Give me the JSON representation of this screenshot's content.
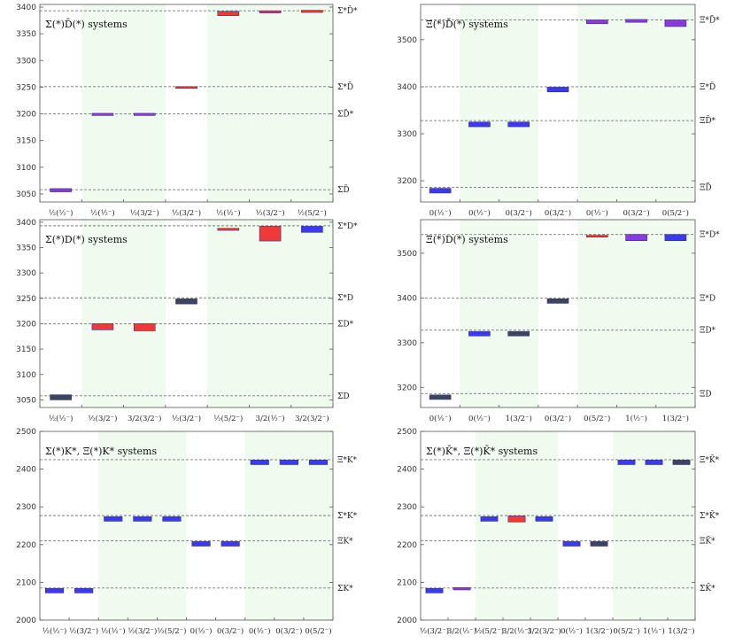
{
  "colors": {
    "blue": "#3a3af0",
    "red": "#f03a3a",
    "purple": "#8a3ae0",
    "navy": "#3a4560",
    "shade": "#eefbee"
  },
  "chart_data": [
    {
      "type": "bar",
      "title": "Σ(*)D̄(*) systems",
      "ylim": [
        3035,
        3405
      ],
      "yticks": [
        3050,
        3100,
        3150,
        3200,
        3250,
        3300,
        3350,
        3400
      ],
      "categories": [
        "½(½⁻)",
        "½(½⁻)",
        "½(3/2⁻)",
        "½(3/2⁻)",
        "½(½⁻)",
        "½(3/2⁻)",
        "½(5/2⁻)"
      ],
      "shaded": [
        [
          1,
          2
        ],
        [
          4,
          6
        ]
      ],
      "thresholds": [
        {
          "label": "Σ*D̄*",
          "value": 3393
        },
        {
          "label": "Σ*D̄",
          "value": 3251
        },
        {
          "label": "ΣD̄*",
          "value": 3200
        },
        {
          "label": "ΣD̄",
          "value": 3058
        }
      ],
      "bars": [
        {
          "value": 3057,
          "low": 3054,
          "high": 3060,
          "color": "purple"
        },
        {
          "value": 3199,
          "low": 3197,
          "high": 3201,
          "color": "purple"
        },
        {
          "value": 3199,
          "low": 3197,
          "high": 3201,
          "color": "purple"
        },
        {
          "value": 3250,
          "low": 3249,
          "high": 3251,
          "color": "red"
        },
        {
          "value": 3388,
          "low": 3384,
          "high": 3392,
          "color": "red"
        },
        {
          "value": 3391,
          "low": 3389,
          "high": 3393,
          "color": "red"
        },
        {
          "value": 3392,
          "low": 3390,
          "high": 3394,
          "color": "red"
        }
      ]
    },
    {
      "type": "bar",
      "title": "Ξ(*)D̄(*) systems",
      "ylim": [
        3155,
        3575
      ],
      "yticks": [
        3200,
        3300,
        3400,
        3500
      ],
      "categories": [
        "0(½⁻)",
        "0(½⁻)",
        "0(3/2⁻)",
        "0(3/2⁻)",
        "0(½⁻)",
        "0(3/2⁻)",
        "0(5/2⁻)"
      ],
      "shaded": [
        [
          1,
          2
        ],
        [
          4,
          6
        ]
      ],
      "thresholds": [
        {
          "label": "Ξ*D̄*",
          "value": 3542
        },
        {
          "label": "Ξ*D̄",
          "value": 3400
        },
        {
          "label": "ΞD̄*",
          "value": 3328
        },
        {
          "label": "ΞD̄",
          "value": 3186
        }
      ],
      "bars": [
        {
          "value": 3179,
          "low": 3174,
          "high": 3184,
          "color": "blue"
        },
        {
          "value": 3320,
          "low": 3315,
          "high": 3325,
          "color": "blue"
        },
        {
          "value": 3320,
          "low": 3315,
          "high": 3325,
          "color": "blue"
        },
        {
          "value": 3394,
          "low": 3389,
          "high": 3399,
          "color": "blue"
        },
        {
          "value": 3538,
          "low": 3534,
          "high": 3542,
          "color": "purple"
        },
        {
          "value": 3540,
          "low": 3537,
          "high": 3543,
          "color": "purple"
        },
        {
          "value": 3535,
          "low": 3528,
          "high": 3542,
          "color": "purple"
        }
      ]
    },
    {
      "type": "bar",
      "title": "Σ(*)D(*) systems",
      "ylim": [
        3035,
        3405
      ],
      "yticks": [
        3050,
        3100,
        3150,
        3200,
        3250,
        3300,
        3350,
        3400
      ],
      "categories": [
        "½(½⁻)",
        "½(3/2⁻)",
        "3/2(3/2⁻)",
        "½(3/2⁻)",
        "½(5/2⁻)",
        "3/2(½⁻)",
        "3/2(3/2⁻)"
      ],
      "shaded": [
        [
          1,
          2
        ],
        [
          4,
          6
        ]
      ],
      "thresholds": [
        {
          "label": "Σ*D*",
          "value": 3393
        },
        {
          "label": "Σ*D",
          "value": 3251
        },
        {
          "label": "ΣD*",
          "value": 3200
        },
        {
          "label": "ΣD",
          "value": 3058
        }
      ],
      "bars": [
        {
          "value": 3055,
          "low": 3050,
          "high": 3060,
          "color": "navy"
        },
        {
          "value": 3194,
          "low": 3188,
          "high": 3200,
          "color": "red"
        },
        {
          "value": 3193,
          "low": 3186,
          "high": 3200,
          "color": "red"
        },
        {
          "value": 3244,
          "low": 3239,
          "high": 3249,
          "color": "navy"
        },
        {
          "value": 3386,
          "low": 3384,
          "high": 3388,
          "color": "red"
        },
        {
          "value": 3378,
          "low": 3363,
          "high": 3392,
          "color": "red"
        },
        {
          "value": 3386,
          "low": 3380,
          "high": 3392,
          "color": "blue"
        }
      ]
    },
    {
      "type": "bar",
      "title": "Ξ(*)D(*) systems",
      "ylim": [
        3155,
        3575
      ],
      "yticks": [
        3200,
        3300,
        3400,
        3500
      ],
      "categories": [
        "0(½⁻)",
        "0(½⁻)",
        "1(3/2⁻)",
        "0(3/2⁻)",
        "0(5/2⁻)",
        "1(½⁻)",
        "1(3/2⁻)"
      ],
      "shaded": [
        [
          1,
          2
        ],
        [
          4,
          6
        ]
      ],
      "thresholds": [
        {
          "label": "Ξ*D*",
          "value": 3542
        },
        {
          "label": "Ξ*D",
          "value": 3400
        },
        {
          "label": "ΞD*",
          "value": 3328
        },
        {
          "label": "ΞD",
          "value": 3186
        }
      ],
      "bars": [
        {
          "value": 3178,
          "low": 3173,
          "high": 3183,
          "color": "navy"
        },
        {
          "value": 3320,
          "low": 3315,
          "high": 3325,
          "color": "blue"
        },
        {
          "value": 3320,
          "low": 3315,
          "high": 3325,
          "color": "navy"
        },
        {
          "value": 3393,
          "low": 3388,
          "high": 3398,
          "color": "navy"
        },
        {
          "value": 3538,
          "low": 3536,
          "high": 3540,
          "color": "red"
        },
        {
          "value": 3535,
          "low": 3528,
          "high": 3542,
          "color": "purple"
        },
        {
          "value": 3535,
          "low": 3528,
          "high": 3542,
          "color": "blue"
        }
      ]
    },
    {
      "type": "bar",
      "title": "Σ(*)K*, Ξ(*)K* systems",
      "ylim": [
        2000,
        2500
      ],
      "yticks": [
        2000,
        2100,
        2200,
        2300,
        2400,
        2500
      ],
      "categories": [
        "½(½⁻)",
        "½(3/2⁻)",
        "½(½⁻)",
        "½(3/2⁻)",
        "½(5/2⁻)",
        "0(½⁻)",
        "0(3/2⁻)",
        "0(½⁻)",
        "0(3/2⁻)",
        "0(5/2⁻)"
      ],
      "shaded": [
        [
          2,
          4
        ],
        [
          7,
          9
        ]
      ],
      "thresholds": [
        {
          "label": "Ξ*K*",
          "value": 2425
        },
        {
          "label": "Σ*K*",
          "value": 2277
        },
        {
          "label": "ΞK*",
          "value": 2210
        },
        {
          "label": "ΣK*",
          "value": 2085
        }
      ],
      "bars": [
        {
          "value": 2078,
          "low": 2072,
          "high": 2084,
          "color": "blue"
        },
        {
          "value": 2078,
          "low": 2072,
          "high": 2084,
          "color": "blue"
        },
        {
          "value": 2268,
          "low": 2262,
          "high": 2274,
          "color": "blue"
        },
        {
          "value": 2268,
          "low": 2262,
          "high": 2274,
          "color": "blue"
        },
        {
          "value": 2268,
          "low": 2262,
          "high": 2274,
          "color": "blue"
        },
        {
          "value": 2202,
          "low": 2196,
          "high": 2208,
          "color": "blue"
        },
        {
          "value": 2202,
          "low": 2196,
          "high": 2208,
          "color": "blue"
        },
        {
          "value": 2418,
          "low": 2412,
          "high": 2424,
          "color": "blue"
        },
        {
          "value": 2418,
          "low": 2412,
          "high": 2424,
          "color": "blue"
        },
        {
          "value": 2418,
          "low": 2412,
          "high": 2424,
          "color": "blue"
        }
      ]
    },
    {
      "type": "bar",
      "title": "Σ(*)K̄*, Ξ(*)K̄* systems",
      "ylim": [
        2000,
        2500
      ],
      "yticks": [
        2000,
        2100,
        2200,
        2300,
        2400,
        2500
      ],
      "categories": [
        "½(3/2⁻)",
        "3/2(½⁻)",
        "½(5/2⁻)",
        "3/2(½⁻)",
        "3/2(3/2⁻)",
        "0(½⁻)",
        "1(3/2⁻)",
        "0(5/2⁻)",
        "1(½⁻)",
        "1(3/2⁻)"
      ],
      "shaded": [
        [
          2,
          4
        ],
        [
          7,
          9
        ]
      ],
      "thresholds": [
        {
          "label": "Ξ*K̄*",
          "value": 2425
        },
        {
          "label": "Σ*K̄*",
          "value": 2277
        },
        {
          "label": "ΞK̄*",
          "value": 2210
        },
        {
          "label": "ΣK̄*",
          "value": 2085
        }
      ],
      "bars": [
        {
          "value": 2078,
          "low": 2072,
          "high": 2084,
          "color": "blue"
        },
        {
          "value": 2083,
          "low": 2080,
          "high": 2086,
          "color": "purple"
        },
        {
          "value": 2268,
          "low": 2262,
          "high": 2274,
          "color": "blue"
        },
        {
          "value": 2268,
          "low": 2260,
          "high": 2276,
          "color": "red"
        },
        {
          "value": 2268,
          "low": 2262,
          "high": 2274,
          "color": "blue"
        },
        {
          "value": 2202,
          "low": 2196,
          "high": 2208,
          "color": "blue"
        },
        {
          "value": 2202,
          "low": 2196,
          "high": 2208,
          "color": "navy"
        },
        {
          "value": 2418,
          "low": 2412,
          "high": 2424,
          "color": "blue"
        },
        {
          "value": 2418,
          "low": 2412,
          "high": 2424,
          "color": "blue"
        },
        {
          "value": 2418,
          "low": 2412,
          "high": 2424,
          "color": "navy"
        }
      ]
    }
  ]
}
